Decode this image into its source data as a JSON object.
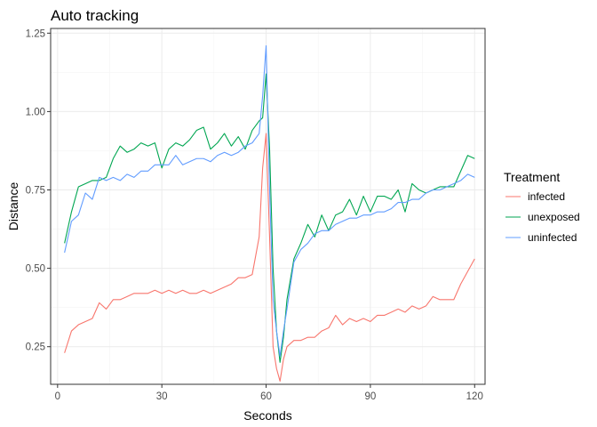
{
  "chart_data": {
    "type": "line",
    "title": "Auto tracking",
    "xlabel": "Seconds",
    "ylabel": "Distance",
    "xlim": [
      -2,
      123
    ],
    "ylim": [
      0.13,
      1.265
    ],
    "x_ticks": [
      0,
      30,
      60,
      90,
      120
    ],
    "x_tick_labels": [
      "0",
      "30",
      "60",
      "90",
      "120"
    ],
    "y_ticks": [
      0.25,
      0.5,
      0.75,
      1.0,
      1.25
    ],
    "y_tick_labels": [
      "0.25",
      "0.50",
      "0.75",
      "1.00",
      "1.25"
    ],
    "grid": true,
    "legend": {
      "title": "Treatment",
      "position": "right"
    },
    "series": [
      {
        "name": "infected",
        "color": "#f8766d",
        "points": [
          [
            2,
            0.23
          ],
          [
            4,
            0.3
          ],
          [
            6,
            0.32
          ],
          [
            8,
            0.33
          ],
          [
            10,
            0.34
          ],
          [
            12,
            0.39
          ],
          [
            14,
            0.37
          ],
          [
            16,
            0.4
          ],
          [
            18,
            0.4
          ],
          [
            20,
            0.41
          ],
          [
            22,
            0.42
          ],
          [
            24,
            0.42
          ],
          [
            26,
            0.42
          ],
          [
            28,
            0.43
          ],
          [
            30,
            0.42
          ],
          [
            32,
            0.43
          ],
          [
            34,
            0.42
          ],
          [
            36,
            0.43
          ],
          [
            38,
            0.42
          ],
          [
            40,
            0.42
          ],
          [
            42,
            0.43
          ],
          [
            44,
            0.42
          ],
          [
            46,
            0.43
          ],
          [
            48,
            0.44
          ],
          [
            50,
            0.45
          ],
          [
            52,
            0.47
          ],
          [
            54,
            0.47
          ],
          [
            56,
            0.48
          ],
          [
            58,
            0.6
          ],
          [
            59,
            0.82
          ],
          [
            60,
            0.93
          ],
          [
            61,
            0.6
          ],
          [
            62,
            0.25
          ],
          [
            63,
            0.18
          ],
          [
            64,
            0.14
          ],
          [
            65,
            0.21
          ],
          [
            66,
            0.25
          ],
          [
            68,
            0.27
          ],
          [
            70,
            0.27
          ],
          [
            72,
            0.28
          ],
          [
            74,
            0.28
          ],
          [
            76,
            0.3
          ],
          [
            78,
            0.31
          ],
          [
            80,
            0.35
          ],
          [
            82,
            0.32
          ],
          [
            84,
            0.34
          ],
          [
            86,
            0.33
          ],
          [
            88,
            0.34
          ],
          [
            90,
            0.33
          ],
          [
            92,
            0.35
          ],
          [
            94,
            0.35
          ],
          [
            96,
            0.36
          ],
          [
            98,
            0.37
          ],
          [
            100,
            0.36
          ],
          [
            102,
            0.38
          ],
          [
            104,
            0.37
          ],
          [
            106,
            0.38
          ],
          [
            108,
            0.41
          ],
          [
            110,
            0.4
          ],
          [
            112,
            0.4
          ],
          [
            114,
            0.4
          ],
          [
            116,
            0.45
          ],
          [
            118,
            0.49
          ],
          [
            120,
            0.53
          ]
        ]
      },
      {
        "name": "unexposed",
        "color": "#00a651",
        "points": [
          [
            2,
            0.58
          ],
          [
            4,
            0.68
          ],
          [
            6,
            0.76
          ],
          [
            8,
            0.77
          ],
          [
            10,
            0.78
          ],
          [
            12,
            0.78
          ],
          [
            14,
            0.79
          ],
          [
            16,
            0.85
          ],
          [
            18,
            0.89
          ],
          [
            20,
            0.87
          ],
          [
            22,
            0.88
          ],
          [
            24,
            0.9
          ],
          [
            26,
            0.89
          ],
          [
            28,
            0.9
          ],
          [
            30,
            0.82
          ],
          [
            32,
            0.88
          ],
          [
            34,
            0.9
          ],
          [
            36,
            0.89
          ],
          [
            38,
            0.91
          ],
          [
            40,
            0.94
          ],
          [
            42,
            0.95
          ],
          [
            44,
            0.88
          ],
          [
            46,
            0.9
          ],
          [
            48,
            0.93
          ],
          [
            50,
            0.89
          ],
          [
            52,
            0.92
          ],
          [
            54,
            0.88
          ],
          [
            56,
            0.94
          ],
          [
            58,
            0.97
          ],
          [
            59,
            0.98
          ],
          [
            60,
            1.12
          ],
          [
            61,
            0.88
          ],
          [
            62,
            0.5
          ],
          [
            63,
            0.3
          ],
          [
            64,
            0.2
          ],
          [
            65,
            0.28
          ],
          [
            66,
            0.4
          ],
          [
            68,
            0.53
          ],
          [
            70,
            0.58
          ],
          [
            72,
            0.64
          ],
          [
            74,
            0.6
          ],
          [
            76,
            0.67
          ],
          [
            78,
            0.62
          ],
          [
            80,
            0.67
          ],
          [
            82,
            0.68
          ],
          [
            84,
            0.72
          ],
          [
            86,
            0.67
          ],
          [
            88,
            0.73
          ],
          [
            90,
            0.68
          ],
          [
            92,
            0.73
          ],
          [
            94,
            0.73
          ],
          [
            96,
            0.72
          ],
          [
            98,
            0.75
          ],
          [
            100,
            0.68
          ],
          [
            102,
            0.77
          ],
          [
            104,
            0.75
          ],
          [
            106,
            0.74
          ],
          [
            108,
            0.75
          ],
          [
            110,
            0.76
          ],
          [
            112,
            0.76
          ],
          [
            114,
            0.76
          ],
          [
            116,
            0.81
          ],
          [
            118,
            0.86
          ],
          [
            120,
            0.85
          ]
        ]
      },
      {
        "name": "uninfected",
        "color": "#619cff",
        "points": [
          [
            2,
            0.55
          ],
          [
            4,
            0.65
          ],
          [
            6,
            0.67
          ],
          [
            8,
            0.74
          ],
          [
            10,
            0.72
          ],
          [
            12,
            0.79
          ],
          [
            14,
            0.78
          ],
          [
            16,
            0.79
          ],
          [
            18,
            0.78
          ],
          [
            20,
            0.8
          ],
          [
            22,
            0.79
          ],
          [
            24,
            0.81
          ],
          [
            26,
            0.81
          ],
          [
            28,
            0.83
          ],
          [
            30,
            0.83
          ],
          [
            32,
            0.83
          ],
          [
            34,
            0.86
          ],
          [
            36,
            0.83
          ],
          [
            38,
            0.84
          ],
          [
            40,
            0.85
          ],
          [
            42,
            0.85
          ],
          [
            44,
            0.84
          ],
          [
            46,
            0.86
          ],
          [
            48,
            0.87
          ],
          [
            50,
            0.86
          ],
          [
            52,
            0.87
          ],
          [
            54,
            0.89
          ],
          [
            56,
            0.9
          ],
          [
            58,
            0.93
          ],
          [
            59,
            1.05
          ],
          [
            60,
            1.21
          ],
          [
            61,
            0.75
          ],
          [
            62,
            0.4
          ],
          [
            63,
            0.3
          ],
          [
            64,
            0.22
          ],
          [
            65,
            0.3
          ],
          [
            66,
            0.37
          ],
          [
            68,
            0.52
          ],
          [
            70,
            0.56
          ],
          [
            72,
            0.58
          ],
          [
            74,
            0.61
          ],
          [
            76,
            0.62
          ],
          [
            78,
            0.62
          ],
          [
            80,
            0.64
          ],
          [
            82,
            0.65
          ],
          [
            84,
            0.66
          ],
          [
            86,
            0.66
          ],
          [
            88,
            0.67
          ],
          [
            90,
            0.67
          ],
          [
            92,
            0.68
          ],
          [
            94,
            0.68
          ],
          [
            96,
            0.69
          ],
          [
            98,
            0.71
          ],
          [
            100,
            0.71
          ],
          [
            102,
            0.72
          ],
          [
            104,
            0.72
          ],
          [
            106,
            0.74
          ],
          [
            108,
            0.75
          ],
          [
            110,
            0.75
          ],
          [
            112,
            0.76
          ],
          [
            114,
            0.77
          ],
          [
            116,
            0.78
          ],
          [
            118,
            0.8
          ],
          [
            120,
            0.79
          ]
        ]
      }
    ]
  }
}
